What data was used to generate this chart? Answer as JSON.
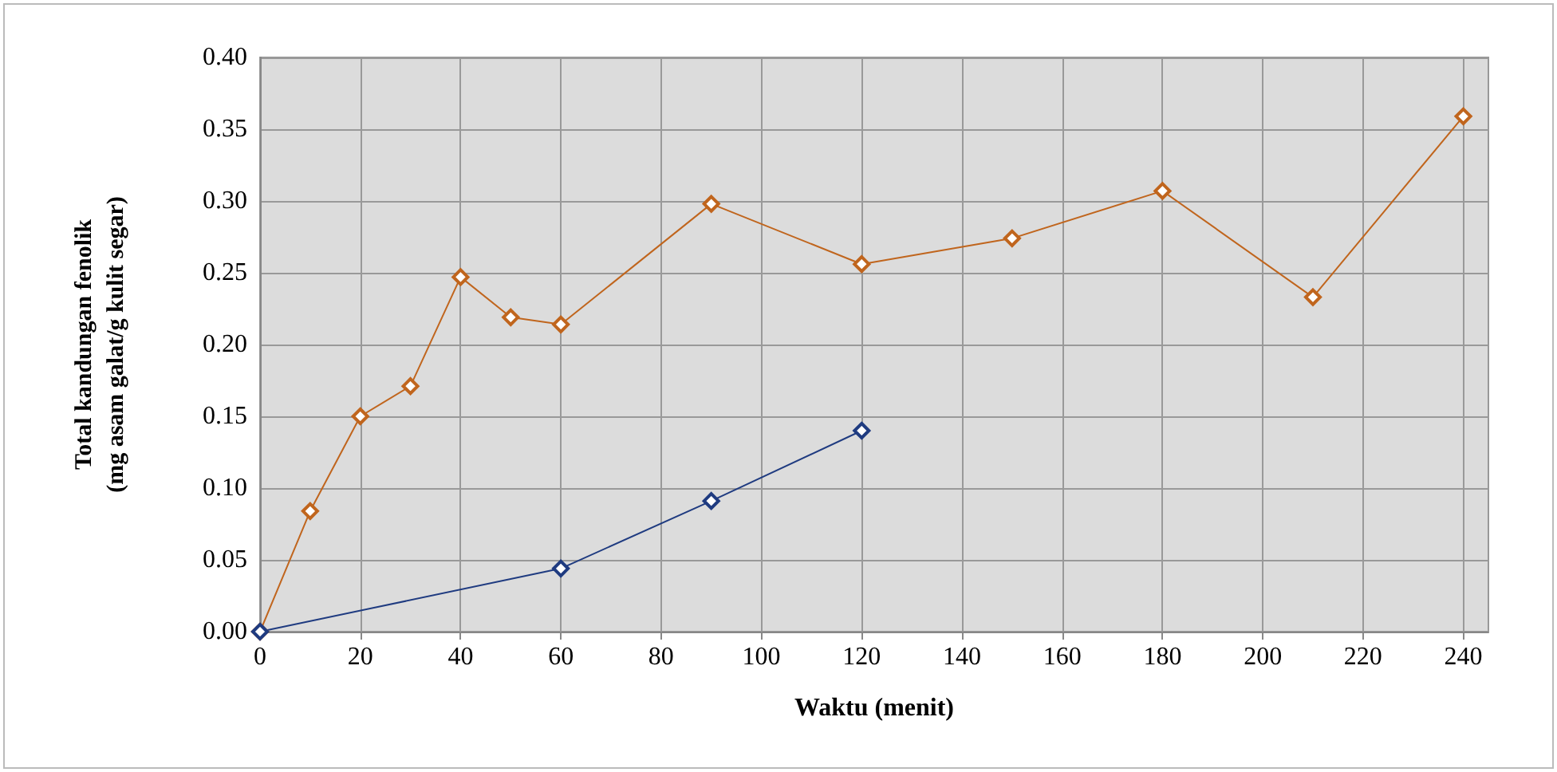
{
  "chart_data": {
    "type": "line",
    "xlabel": "Waktu (menit)",
    "ylabel": "Total kandungan fenolik\n(mg asam galat/g kulit segar)",
    "series": [
      {
        "color": "#c0651d",
        "x": [
          0,
          10,
          20,
          30,
          40,
          50,
          60,
          90,
          120,
          150,
          180,
          210,
          240
        ],
        "values": [
          0,
          0.084,
          0.15,
          0.171,
          0.247,
          0.219,
          0.214,
          0.298,
          0.256,
          0.274,
          0.307,
          0.233,
          0.359
        ]
      },
      {
        "color": "#1f3b80",
        "x": [
          0,
          60,
          90,
          120
        ],
        "values": [
          0,
          0.044,
          0.091,
          0.14
        ]
      }
    ],
    "xlim": [
      0,
      245
    ],
    "xticks": [
      0,
      20,
      40,
      60,
      80,
      100,
      120,
      140,
      160,
      180,
      200,
      220,
      240
    ],
    "ylim": [
      0,
      0.4
    ],
    "yticks": [
      {
        "value": 0,
        "label": "0.00"
      },
      {
        "value": 0.05,
        "label": "0.05"
      },
      {
        "value": 0.1,
        "label": "0.10"
      },
      {
        "value": 0.15,
        "label": "0.15"
      },
      {
        "value": 0.2,
        "label": "0.20"
      },
      {
        "value": 0.25,
        "label": "0.25"
      },
      {
        "value": 0.3,
        "label": "0.30"
      },
      {
        "value": 0.35,
        "label": "0.35"
      },
      {
        "value": 0.4,
        "label": "0.40"
      }
    ],
    "grid": true,
    "marker": "diamond",
    "line_style": "solid"
  }
}
